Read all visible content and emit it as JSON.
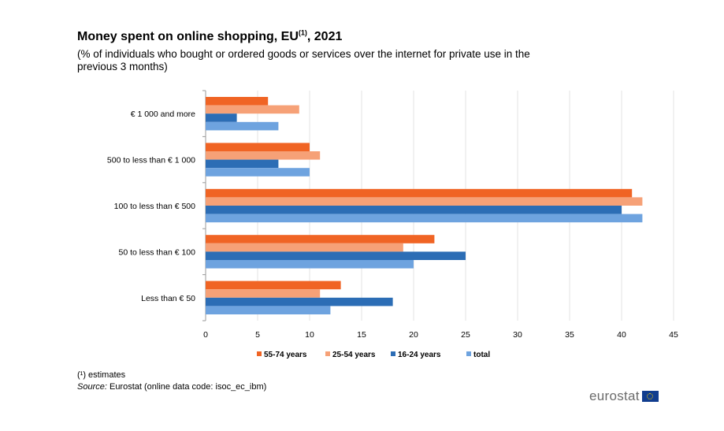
{
  "title": "Money spent on online shopping, EU",
  "title_sup": "(1)",
  "title_suffix": ", 2021",
  "subtitle": "(% of individuals who bought or ordered goods or services over the internet for private use in the previous 3 months)",
  "footnote": {
    "marker": "(¹)",
    "text": " estimates"
  },
  "source": {
    "label": "Source:",
    "text": " Eurostat (online data code: isoc_ec_ibm)"
  },
  "logo_text": "eurostat",
  "chart_data": {
    "type": "bar",
    "orientation": "horizontal",
    "categories": [
      "€ 1 000 and more",
      "500 to less than € 1 000",
      "100 to less than € 500",
      "50 to less than € 100",
      "Less than € 50"
    ],
    "series": [
      {
        "name": "55-74 years",
        "color": "#f06424",
        "values": [
          6,
          10,
          41,
          22,
          13
        ]
      },
      {
        "name": "25-54 years",
        "color": "#f6a177",
        "values": [
          9,
          11,
          42,
          19,
          11
        ]
      },
      {
        "name": "16-24 years",
        "color": "#2c6db5",
        "values": [
          3,
          7,
          40,
          25,
          18
        ]
      },
      {
        "name": "total",
        "color": "#6ea3df",
        "values": [
          7,
          10,
          42,
          20,
          12
        ]
      }
    ],
    "xlim": [
      0,
      45
    ],
    "xticks": [
      0,
      5,
      10,
      15,
      20,
      25,
      30,
      35,
      40,
      45
    ],
    "grid": true,
    "legend_position": "bottom"
  }
}
